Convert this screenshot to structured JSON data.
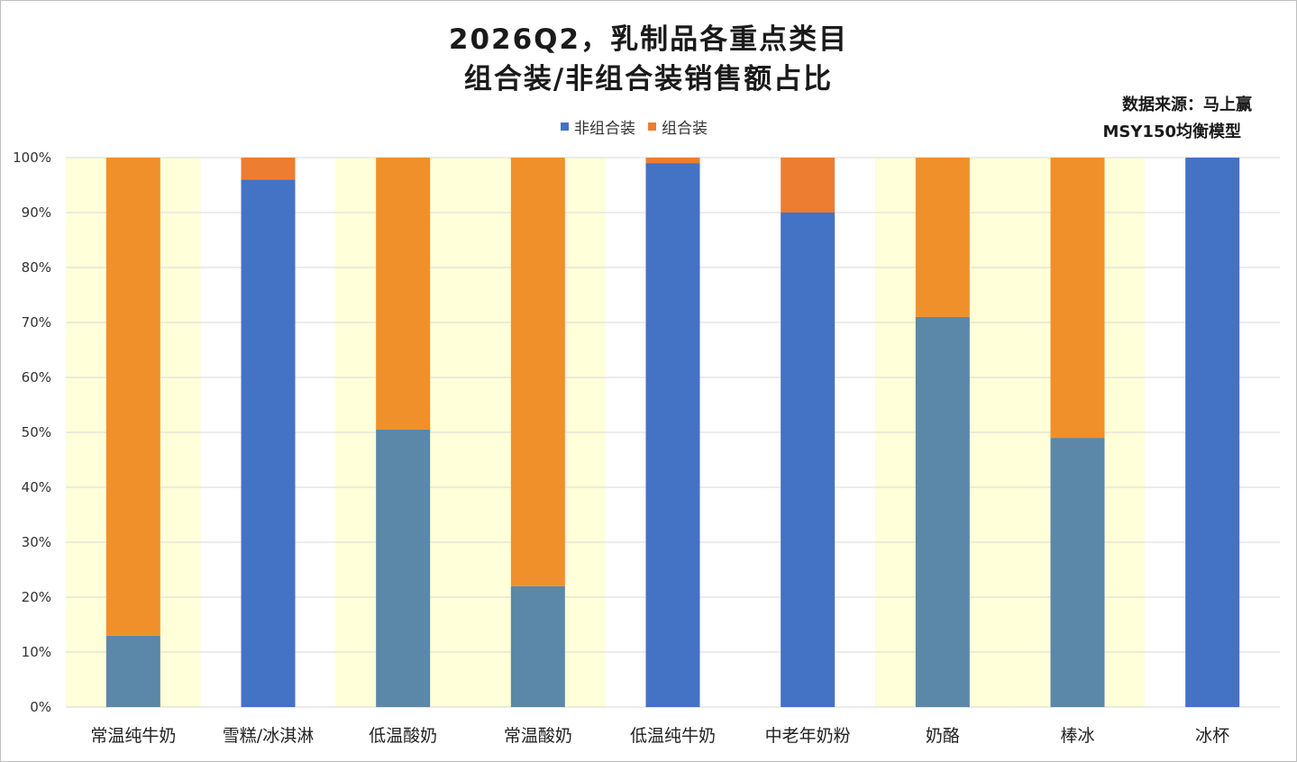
{
  "title_line1": "2026Q2，乳制品各重点类目",
  "title_line2": "组合装/非组合装销售额占比",
  "source_line1": "数据来源：马上赢",
  "source_line2": "MSY150均衡模型",
  "legend": [
    {
      "label": "非组合装",
      "color": "#4472c4"
    },
    {
      "label": "组合装",
      "color": "#ed7d31"
    }
  ],
  "colors": {
    "highlight_band": "#ffffd9",
    "grid": "#d9d9d9",
    "non_combo_blue": "#4472c4",
    "non_combo_steel": "#5b87a8",
    "combo_orange": "#f0902b",
    "combo_orange_alt": "#ed7d31"
  },
  "chart_data": {
    "type": "bar",
    "stacked": true,
    "percent": true,
    "categories": [
      "常温纯牛奶",
      "雪糕/冰淇淋",
      "低温酸奶",
      "常温酸奶",
      "低温纯牛奶",
      "中老年奶粉",
      "奶酪",
      "棒冰",
      "冰杯"
    ],
    "series": [
      {
        "name": "非组合装",
        "values": [
          13,
          96,
          50.5,
          22,
          99,
          90,
          71,
          49,
          100
        ]
      },
      {
        "name": "组合装",
        "values": [
          87,
          4,
          49.5,
          78,
          1,
          10,
          29,
          51,
          0
        ]
      }
    ],
    "highlighted_categories": [
      "常温纯牛奶",
      "低温酸奶",
      "常温酸奶",
      "奶酪",
      "棒冰"
    ],
    "ylim": [
      0,
      100
    ],
    "yticks": [
      "0%",
      "10%",
      "20%",
      "30%",
      "40%",
      "50%",
      "60%",
      "70%",
      "80%",
      "90%",
      "100%"
    ],
    "grid": true,
    "legend_position": "top-center"
  }
}
